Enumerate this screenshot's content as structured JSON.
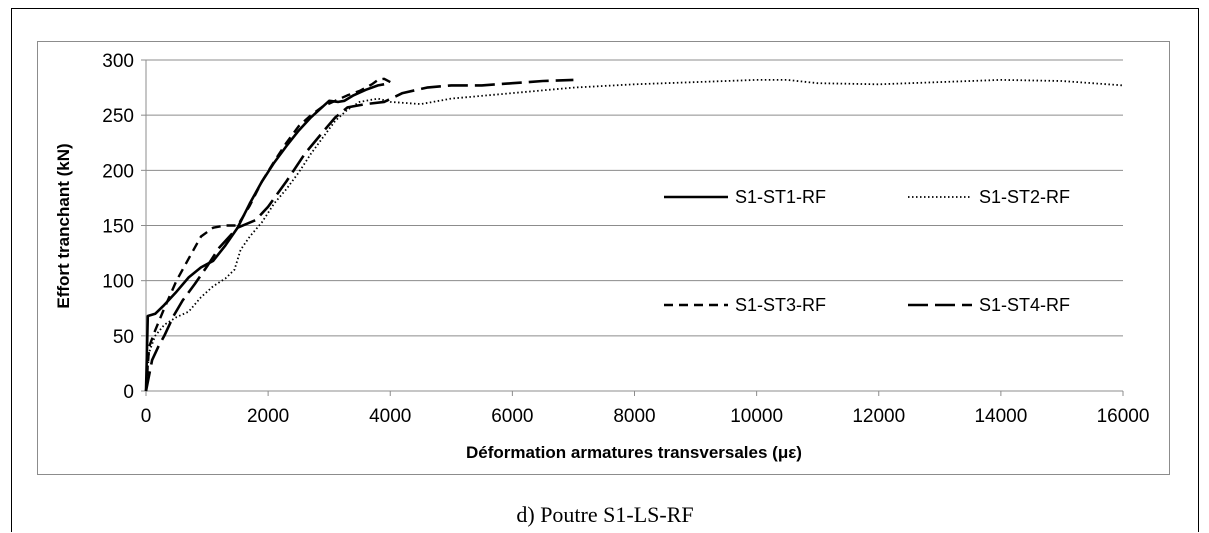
{
  "caption": "d) Poutre S1-LS-RF",
  "chart_data": {
    "type": "line",
    "title": "",
    "xlabel": "Déformation armatures transversales (με)",
    "ylabel": "Effort tranchant (kN)",
    "xlim": [
      0,
      16000
    ],
    "ylim": [
      0,
      300
    ],
    "xticks": [
      "0",
      "2000",
      "4000",
      "6000",
      "8000",
      "10000",
      "12000",
      "14000",
      "16000"
    ],
    "yticks": [
      "0",
      "50",
      "100",
      "150",
      "200",
      "250",
      "300"
    ],
    "grid": "horizontal",
    "legend_placement": "inside-right",
    "series": [
      {
        "name": "S1-ST1-RF",
        "style": "solid",
        "points": [
          [
            0,
            0
          ],
          [
            30,
            68
          ],
          [
            150,
            70
          ],
          [
            300,
            78
          ],
          [
            500,
            90
          ],
          [
            700,
            103
          ],
          [
            900,
            112
          ],
          [
            1100,
            118
          ],
          [
            1300,
            132
          ],
          [
            1500,
            148
          ],
          [
            1700,
            170
          ],
          [
            1900,
            190
          ],
          [
            2100,
            207
          ],
          [
            2300,
            222
          ],
          [
            2500,
            236
          ],
          [
            2700,
            248
          ],
          [
            2900,
            258
          ],
          [
            3000,
            263
          ],
          [
            3150,
            262
          ],
          [
            3250,
            263
          ],
          [
            3400,
            268
          ],
          [
            3600,
            273
          ],
          [
            3800,
            277
          ],
          [
            3900,
            278
          ]
        ]
      },
      {
        "name": "S1-ST2-RF",
        "style": "dotted",
        "points": [
          [
            0,
            0
          ],
          [
            50,
            35
          ],
          [
            150,
            50
          ],
          [
            300,
            60
          ],
          [
            500,
            67
          ],
          [
            700,
            72
          ],
          [
            900,
            85
          ],
          [
            1100,
            95
          ],
          [
            1300,
            102
          ],
          [
            1450,
            110
          ],
          [
            1550,
            128
          ],
          [
            1700,
            140
          ],
          [
            1900,
            153
          ],
          [
            2100,
            170
          ],
          [
            2300,
            183
          ],
          [
            2500,
            198
          ],
          [
            2700,
            215
          ],
          [
            2900,
            230
          ],
          [
            3100,
            245
          ],
          [
            3300,
            255
          ],
          [
            3500,
            262
          ],
          [
            3800,
            265
          ],
          [
            4000,
            262
          ],
          [
            4500,
            260
          ],
          [
            5000,
            265
          ],
          [
            6000,
            270
          ],
          [
            7000,
            275
          ],
          [
            8000,
            278
          ],
          [
            9000,
            280
          ],
          [
            10000,
            282
          ],
          [
            10500,
            282
          ],
          [
            11000,
            279
          ],
          [
            12000,
            278
          ],
          [
            13000,
            280
          ],
          [
            14000,
            282
          ],
          [
            15000,
            281
          ],
          [
            16000,
            277
          ]
        ]
      },
      {
        "name": "S1-ST3-RF",
        "style": "dashed",
        "points": [
          [
            0,
            0
          ],
          [
            50,
            40
          ],
          [
            150,
            55
          ],
          [
            300,
            75
          ],
          [
            500,
            100
          ],
          [
            700,
            120
          ],
          [
            900,
            140
          ],
          [
            1100,
            148
          ],
          [
            1300,
            150
          ],
          [
            1500,
            150
          ],
          [
            1700,
            168
          ],
          [
            1900,
            190
          ],
          [
            2100,
            208
          ],
          [
            2300,
            225
          ],
          [
            2500,
            240
          ],
          [
            2700,
            250
          ],
          [
            2900,
            258
          ],
          [
            3100,
            263
          ],
          [
            3300,
            268
          ],
          [
            3500,
            272
          ],
          [
            3700,
            278
          ],
          [
            3800,
            282
          ],
          [
            3900,
            283
          ],
          [
            4000,
            280
          ]
        ]
      },
      {
        "name": "S1-ST4-RF",
        "style": "longdash",
        "points": [
          [
            0,
            0
          ],
          [
            100,
            28
          ],
          [
            200,
            40
          ],
          [
            300,
            50
          ],
          [
            450,
            68
          ],
          [
            600,
            82
          ],
          [
            800,
            97
          ],
          [
            1000,
            113
          ],
          [
            1200,
            130
          ],
          [
            1500,
            148
          ],
          [
            1800,
            155
          ],
          [
            2000,
            167
          ],
          [
            2300,
            190
          ],
          [
            2600,
            215
          ],
          [
            2900,
            235
          ],
          [
            3100,
            248
          ],
          [
            3300,
            257
          ],
          [
            3600,
            260
          ],
          [
            3900,
            262
          ],
          [
            4200,
            270
          ],
          [
            4600,
            275
          ],
          [
            5000,
            277
          ],
          [
            5500,
            277
          ],
          [
            6000,
            279
          ],
          [
            6500,
            281
          ],
          [
            7000,
            282
          ]
        ]
      }
    ]
  }
}
